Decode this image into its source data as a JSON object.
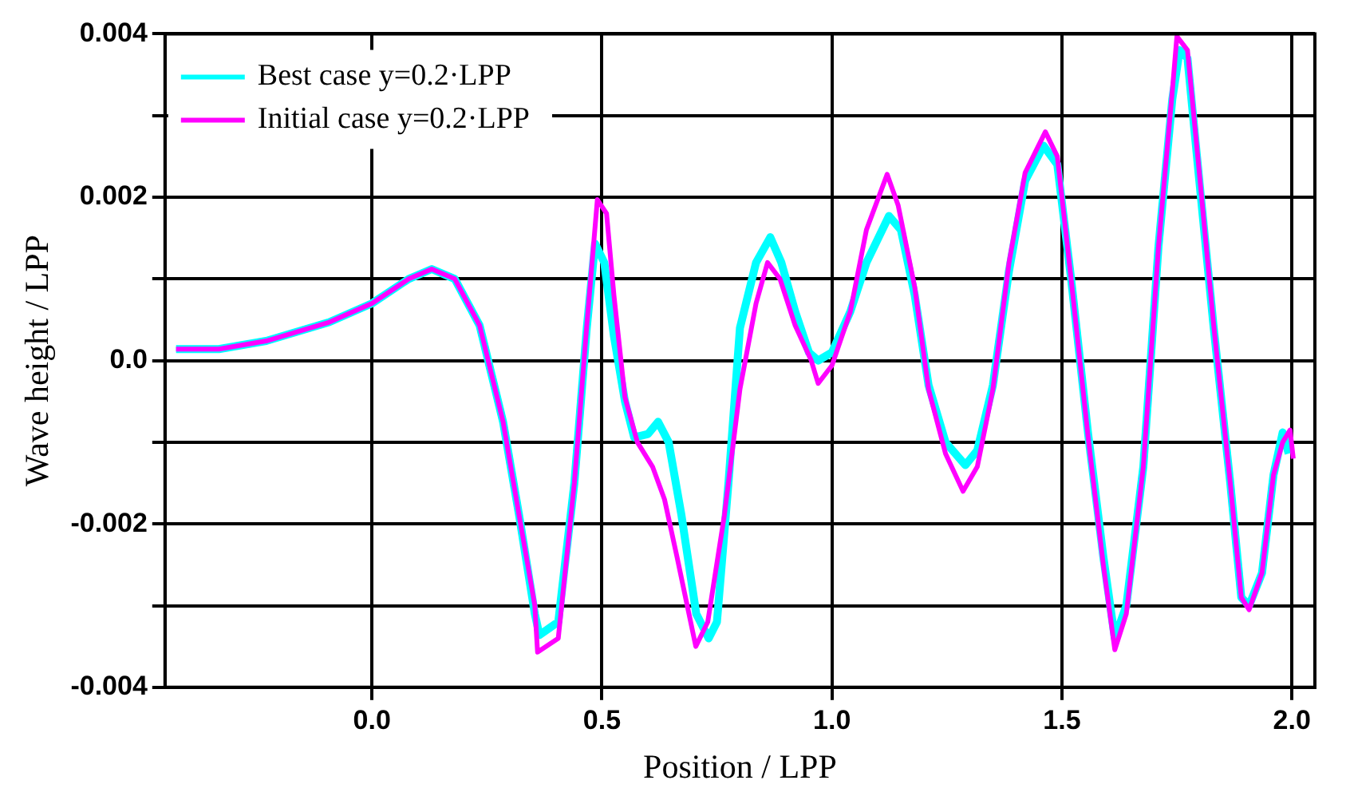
{
  "chart_data": {
    "type": "line",
    "xlabel": "Position / LPP",
    "ylabel": "Wave height / LPP",
    "xlim": [
      -0.45,
      2.05
    ],
    "ylim": [
      -0.004,
      0.004
    ],
    "xticks": [
      {
        "value": 0,
        "label": "0.0"
      },
      {
        "value": 0.5,
        "label": "0.5"
      },
      {
        "value": 1,
        "label": "1.0"
      },
      {
        "value": 1.5,
        "label": "1.5"
      },
      {
        "value": 2,
        "label": "2.0"
      }
    ],
    "yticks": [
      -0.004,
      {
        "value": -0.003,
        "label": null
      },
      -0.002,
      {
        "value": -0.001,
        "label": null
      },
      {
        "value": 0,
        "label": "0.0"
      },
      {
        "value": 0.001,
        "label": null
      },
      0.002,
      {
        "value": 0.003,
        "label": null
      },
      0.004
    ],
    "grid": true,
    "legend": "top left",
    "marker": "none",
    "line_style": "solid",
    "series": [
      {
        "name": "Best case y=0.2·LPP",
        "color": "#00ffff",
        "x": [
          -0.426,
          -0.333,
          -0.23,
          -0.093,
          0,
          0.08,
          0.13,
          0.18,
          0.234,
          0.285,
          0.32,
          0.354,
          0.364,
          0.405,
          0.44,
          0.467,
          0.485,
          0.505,
          0.526,
          0.55,
          0.57,
          0.6,
          0.622,
          0.645,
          0.673,
          0.705,
          0.732,
          0.75,
          0.775,
          0.8,
          0.835,
          0.866,
          0.89,
          0.92,
          0.95,
          0.97,
          1.0,
          1.04,
          1.075,
          1.124,
          1.15,
          1.18,
          1.21,
          1.247,
          1.29,
          1.316,
          1.35,
          1.385,
          1.42,
          1.46,
          1.49,
          1.52,
          1.557,
          1.59,
          1.615,
          1.64,
          1.677,
          1.71,
          1.74,
          1.756,
          1.773,
          1.797,
          1.83,
          1.866,
          1.89,
          1.907,
          1.935,
          1.96,
          1.98,
          1.993
        ],
        "values": [
          0.00014,
          0.00014,
          0.00024,
          0.00047,
          0.0007,
          0.001,
          0.00112,
          0.001,
          0.00043,
          -0.00075,
          -0.0019,
          -0.0031,
          -0.00336,
          -0.0032,
          -0.0015,
          0.0004,
          0.00143,
          0.0012,
          0.0003,
          -0.0005,
          -0.00094,
          -0.0009,
          -0.00075,
          -0.001,
          -0.0019,
          -0.0031,
          -0.0034,
          -0.0032,
          -0.0015,
          0.0004,
          0.0012,
          0.00151,
          0.0012,
          0.0006,
          0.0001,
          0,
          0.0001,
          0.0006,
          0.0012,
          0.00177,
          0.0016,
          0.0008,
          -0.0003,
          -0.001,
          -0.00128,
          -0.0011,
          -0.0003,
          0.0011,
          0.0022,
          0.00263,
          0.0024,
          0.001,
          -0.0009,
          -0.0024,
          -0.0034,
          -0.003,
          -0.0013,
          0.0014,
          0.0032,
          0.0038,
          0.0037,
          0.0023,
          0.0004,
          -0.0015,
          -0.0029,
          -0.003,
          -0.0026,
          -0.0014,
          -0.00088,
          -0.00114
        ]
      },
      {
        "name": "Initial case y=0.2·LPP",
        "color": "#ff00ff",
        "x": [
          -0.426,
          -0.333,
          -0.23,
          -0.093,
          0,
          0.08,
          0.13,
          0.18,
          0.234,
          0.285,
          0.32,
          0.354,
          0.36,
          0.405,
          0.44,
          0.467,
          0.49,
          0.51,
          0.526,
          0.55,
          0.577,
          0.61,
          0.636,
          0.663,
          0.704,
          0.73,
          0.766,
          0.8,
          0.835,
          0.86,
          0.887,
          0.92,
          0.955,
          0.97,
          1.0,
          1.04,
          1.075,
          1.12,
          1.144,
          1.18,
          1.21,
          1.247,
          1.285,
          1.316,
          1.35,
          1.385,
          1.42,
          1.464,
          1.49,
          1.52,
          1.557,
          1.59,
          1.615,
          1.64,
          1.677,
          1.71,
          1.74,
          1.75,
          1.773,
          1.797,
          1.83,
          1.866,
          1.89,
          1.907,
          1.935,
          1.96,
          1.98,
          1.996,
          2.003
        ],
        "values": [
          0.00014,
          0.00014,
          0.00024,
          0.00047,
          0.0007,
          0.001,
          0.00112,
          0.001,
          0.00043,
          -0.00075,
          -0.0019,
          -0.003,
          -0.00357,
          -0.0034,
          -0.0015,
          0.00043,
          0.00197,
          0.0018,
          0.0008,
          -0.00045,
          -0.001,
          -0.0013,
          -0.0017,
          -0.0024,
          -0.0035,
          -0.0032,
          -0.0019,
          -0.00035,
          0.0007,
          0.0012,
          0.001,
          0.00043,
          0,
          -0.00028,
          -6e-05,
          0.0006,
          0.0016,
          0.00228,
          0.0019,
          0.0009,
          -0.00035,
          -0.00114,
          -0.0016,
          -0.0013,
          -0.00035,
          0.0012,
          0.0023,
          0.0028,
          0.0025,
          0.001,
          -0.00094,
          -0.0025,
          -0.00354,
          -0.0031,
          -0.0013,
          0.0014,
          0.0033,
          0.00397,
          0.0038,
          0.0024,
          0.00043,
          -0.0015,
          -0.0029,
          -0.00305,
          -0.0026,
          -0.0014,
          -0.001,
          -0.00085,
          -0.0012
        ]
      }
    ]
  }
}
